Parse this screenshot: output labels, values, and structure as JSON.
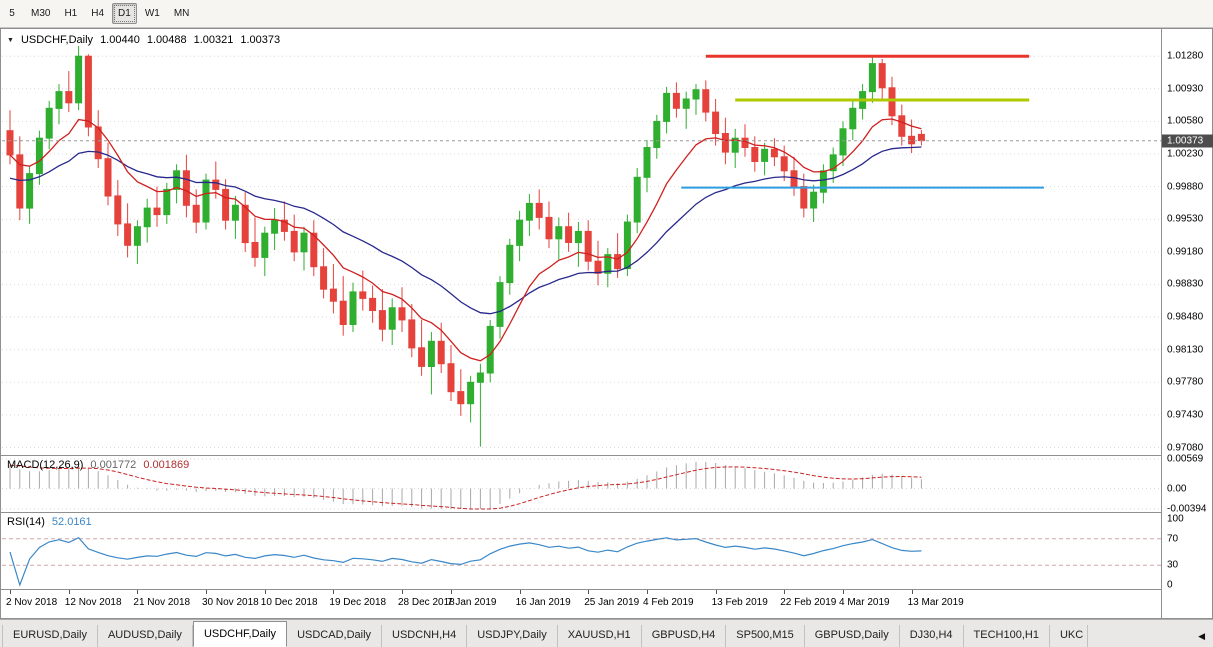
{
  "toolbar": {
    "timeframes": [
      {
        "label": "5",
        "active": false
      },
      {
        "label": "M30",
        "active": false
      },
      {
        "label": "H1",
        "active": false
      },
      {
        "label": "H4",
        "active": false
      },
      {
        "label": "D1",
        "active": true
      },
      {
        "label": "W1",
        "active": false
      },
      {
        "label": "MN",
        "active": false
      }
    ]
  },
  "header": {
    "symbol": "USDCHF,Daily",
    "open": "1.00440",
    "high": "1.00488",
    "low": "1.00321",
    "close": "1.00373"
  },
  "icons": {
    "chart_dropdown": "▼",
    "tab_scroll_left": "◀"
  },
  "colors": {
    "up": "#2fae2f",
    "down": "#e5423c",
    "ma_fast": "#d02020",
    "ma_slow": "#28288c",
    "macd_hist": "#a8a8a8",
    "macd_signal": "#cc2222",
    "rsi": "#3a87c8",
    "grid": "#d9d9d9"
  },
  "price_axis": {
    "labels": [
      "1.01280",
      "1.00930",
      "1.00580",
      "1.00230",
      "0.99880",
      "0.99530",
      "0.99180",
      "0.98830",
      "0.98480",
      "0.98130",
      "0.97780",
      "0.97430",
      "0.97080"
    ],
    "current_price": "1.00373"
  },
  "macd": {
    "name": "MACD(12,26,9)",
    "value_main": "0.001772",
    "value_signal": "0.001869",
    "axis": [
      "0.00569",
      "0.00",
      "-0.00394"
    ]
  },
  "rsi": {
    "name": "RSI(14)",
    "value": "52.0161",
    "axis": [
      "100",
      "70",
      "30",
      "0"
    ]
  },
  "tabbar": {
    "active": "USDCHF,Daily",
    "tabs": [
      {
        "label": "EURUSD,Daily"
      },
      {
        "label": "AUDUSD,Daily"
      },
      {
        "label": "USDCHF,Daily"
      },
      {
        "label": "USDCAD,Daily"
      },
      {
        "label": "USDCNH,H4"
      },
      {
        "label": "USDJPY,Daily"
      },
      {
        "label": "XAUUSD,H1"
      },
      {
        "label": "GBPUSD,H4"
      },
      {
        "label": "SP500,M15"
      },
      {
        "label": "GBPUSD,Daily"
      },
      {
        "label": "DJ30,H4"
      },
      {
        "label": "TECH100,H1"
      },
      {
        "label": "UKC",
        "truncated": true
      }
    ]
  },
  "chart_data": {
    "type": "candlestick",
    "symbol": "USDCHF",
    "timeframe": "Daily",
    "last": {
      "open": 1.0044,
      "high": 1.00488,
      "low": 1.00321,
      "close": 1.00373
    },
    "ylim": [
      0.97,
      1.0155
    ],
    "candles": [
      [
        1.0048,
        1.007,
        1.0012,
        1.0022
      ],
      [
        1.0022,
        1.0042,
        0.9952,
        0.9965
      ],
      [
        0.9965,
        1.001,
        0.9948,
        1.0002
      ],
      [
        1.0002,
        1.0048,
        0.999,
        1.004
      ],
      [
        1.004,
        1.008,
        1.0028,
        1.0072
      ],
      [
        1.0072,
        1.0098,
        1.0055,
        1.009
      ],
      [
        1.009,
        1.0112,
        1.0068,
        1.0078
      ],
      [
        1.0078,
        1.0139,
        1.007,
        1.0128
      ],
      [
        1.0128,
        1.013,
        1.0042,
        1.0052
      ],
      [
        1.0052,
        1.007,
        1.0008,
        1.0018
      ],
      [
        1.0018,
        1.0035,
        0.9968,
        0.9978
      ],
      [
        0.9978,
        0.9995,
        0.9935,
        0.9948
      ],
      [
        0.9948,
        0.997,
        0.9912,
        0.9925
      ],
      [
        0.9925,
        0.9952,
        0.9905,
        0.9945
      ],
      [
        0.9945,
        0.9975,
        0.9928,
        0.9965
      ],
      [
        0.9965,
        0.9988,
        0.9945,
        0.9958
      ],
      [
        0.9958,
        0.9992,
        0.9948,
        0.9985
      ],
      [
        0.9985,
        1.0012,
        0.997,
        1.0005
      ],
      [
        1.0005,
        1.0022,
        0.9955,
        0.9968
      ],
      [
        0.9968,
        0.9985,
        0.9938,
        0.995
      ],
      [
        0.995,
        1.0002,
        0.9942,
        0.9995
      ],
      [
        0.9995,
        1.0015,
        0.9975,
        0.9985
      ],
      [
        0.9985,
        0.9996,
        0.9942,
        0.9952
      ],
      [
        0.9952,
        0.9978,
        0.9932,
        0.9968
      ],
      [
        0.9968,
        0.9982,
        0.9918,
        0.9928
      ],
      [
        0.9928,
        0.9955,
        0.9902,
        0.9912
      ],
      [
        0.9912,
        0.9945,
        0.9892,
        0.9938
      ],
      [
        0.9938,
        0.9965,
        0.992,
        0.9952
      ],
      [
        0.9952,
        0.9972,
        0.993,
        0.994
      ],
      [
        0.994,
        0.9958,
        0.9908,
        0.9918
      ],
      [
        0.9918,
        0.9945,
        0.9898,
        0.9938
      ],
      [
        0.9938,
        0.9952,
        0.9892,
        0.9902
      ],
      [
        0.9902,
        0.9922,
        0.9868,
        0.9878
      ],
      [
        0.9878,
        0.9905,
        0.9852,
        0.9865
      ],
      [
        0.9865,
        0.9892,
        0.9828,
        0.984
      ],
      [
        0.984,
        0.9885,
        0.9832,
        0.9875
      ],
      [
        0.9875,
        0.9898,
        0.9855,
        0.9868
      ],
      [
        0.9868,
        0.9882,
        0.9842,
        0.9855
      ],
      [
        0.9855,
        0.9878,
        0.9822,
        0.9835
      ],
      [
        0.9835,
        0.9868,
        0.9818,
        0.9858
      ],
      [
        0.9858,
        0.988,
        0.9832,
        0.9845
      ],
      [
        0.9845,
        0.9862,
        0.9805,
        0.9815
      ],
      [
        0.9815,
        0.9845,
        0.9785,
        0.9795
      ],
      [
        0.9795,
        0.9832,
        0.9765,
        0.9822
      ],
      [
        0.9822,
        0.9842,
        0.9788,
        0.9798
      ],
      [
        0.9798,
        0.9818,
        0.9758,
        0.9768
      ],
      [
        0.9768,
        0.9792,
        0.9742,
        0.9755
      ],
      [
        0.9755,
        0.9785,
        0.9735,
        0.9778
      ],
      [
        0.9778,
        0.9798,
        0.9709,
        0.9788
      ],
      [
        0.9788,
        0.9845,
        0.9778,
        0.9838
      ],
      [
        0.9838,
        0.9892,
        0.9825,
        0.9885
      ],
      [
        0.9885,
        0.9932,
        0.9872,
        0.9925
      ],
      [
        0.9925,
        0.9962,
        0.9908,
        0.9952
      ],
      [
        0.9952,
        0.998,
        0.9935,
        0.997
      ],
      [
        0.997,
        0.9985,
        0.9942,
        0.9955
      ],
      [
        0.9955,
        0.9972,
        0.9922,
        0.9932
      ],
      [
        0.9932,
        0.9955,
        0.991,
        0.9945
      ],
      [
        0.9945,
        0.996,
        0.9918,
        0.9928
      ],
      [
        0.9928,
        0.995,
        0.9902,
        0.994
      ],
      [
        0.994,
        0.9952,
        0.9898,
        0.9908
      ],
      [
        0.9908,
        0.993,
        0.9882,
        0.9895
      ],
      [
        0.9895,
        0.9922,
        0.988,
        0.9915
      ],
      [
        0.9915,
        0.9938,
        0.989,
        0.99
      ],
      [
        0.99,
        0.9958,
        0.9892,
        0.995
      ],
      [
        0.995,
        1.0008,
        0.9938,
        0.9998
      ],
      [
        0.9998,
        1.0038,
        0.9982,
        1.003
      ],
      [
        1.003,
        1.0065,
        1.0018,
        1.0058
      ],
      [
        1.0058,
        1.0095,
        1.0045,
        1.0088
      ],
      [
        1.0088,
        1.01,
        1.0062,
        1.0072
      ],
      [
        1.0072,
        1.009,
        1.005,
        1.0082
      ],
      [
        1.0082,
        1.0098,
        1.0065,
        1.0092
      ],
      [
        1.0092,
        1.0102,
        1.0058,
        1.0068
      ],
      [
        1.0068,
        1.0082,
        1.0032,
        1.0045
      ],
      [
        1.0045,
        1.0062,
        1.0012,
        1.0025
      ],
      [
        1.0025,
        1.005,
        1.0008,
        1.004
      ],
      [
        1.004,
        1.0055,
        1.002,
        1.003
      ],
      [
        1.003,
        1.0042,
        1.0004,
        1.0015
      ],
      [
        1.0015,
        1.0035,
        1.0,
        1.0028
      ],
      [
        1.0028,
        1.004,
        1.001,
        1.002
      ],
      [
        1.002,
        1.0032,
        0.9994,
        1.0005
      ],
      [
        1.0005,
        1.002,
        0.9978,
        0.9988
      ],
      [
        0.9988,
        1.0002,
        0.9955,
        0.9965
      ],
      [
        0.9965,
        0.999,
        0.995,
        0.9982
      ],
      [
        0.9982,
        1.0012,
        0.997,
        1.0005
      ],
      [
        1.0005,
        1.003,
        0.9992,
        1.0022
      ],
      [
        1.0022,
        1.0058,
        1.001,
        1.005
      ],
      [
        1.005,
        1.008,
        1.0038,
        1.0072
      ],
      [
        1.0072,
        1.0098,
        1.006,
        1.009
      ],
      [
        1.009,
        1.0128,
        1.0078,
        1.012
      ],
      [
        1.012,
        1.0125,
        1.0082,
        1.0094
      ],
      [
        1.0094,
        1.0106,
        1.0054,
        1.0064
      ],
      [
        1.0064,
        1.0076,
        1.0032,
        1.0042
      ],
      [
        1.0042,
        1.006,
        1.0024,
        1.0034
      ],
      [
        1.0044,
        1.00488,
        1.00321,
        1.00373
      ]
    ],
    "x_ticks": [
      {
        "label": "2 Nov 2018",
        "i": 0
      },
      {
        "label": "12 Nov 2018",
        "i": 6
      },
      {
        "label": "21 Nov 2018",
        "i": 13
      },
      {
        "label": "30 Nov 2018",
        "i": 20
      },
      {
        "label": "10 Dec 2018",
        "i": 26
      },
      {
        "label": "19 Dec 2018",
        "i": 33
      },
      {
        "label": "28 Dec 2018",
        "i": 40
      },
      {
        "label": "7 Jan 2019",
        "i": 45
      },
      {
        "label": "16 Jan 2019",
        "i": 52
      },
      {
        "label": "25 Jan 2019",
        "i": 59
      },
      {
        "label": "4 Feb 2019",
        "i": 65
      },
      {
        "label": "13 Feb 2019",
        "i": 72
      },
      {
        "label": "22 Feb 2019",
        "i": 79
      },
      {
        "label": "4 Mar 2019",
        "i": 85
      },
      {
        "label": "13 Mar 2019",
        "i": 92
      }
    ],
    "trend_lines": [
      {
        "name": "resistance-line",
        "price": 1.0128,
        "from": 71,
        "to": 104,
        "color": "#e8352b",
        "width": 3
      },
      {
        "name": "upper-breakout-line",
        "price": 1.0081,
        "from": 74,
        "to": 104,
        "color": "#b0c800",
        "width": 3
      },
      {
        "name": "support-line",
        "price": 0.9987,
        "from": 68.5,
        "to": 105.5,
        "color": "#2e9ee0",
        "width": 2
      }
    ],
    "indicators": {
      "macd": {
        "fast": 12,
        "slow": 26,
        "signal": 9,
        "value_main": 0.001772,
        "value_signal": 0.001869,
        "range": [
          -0.00394,
          0.00569
        ]
      },
      "rsi": {
        "period": 14,
        "value": 52.0161,
        "levels": [
          70,
          30
        ],
        "range": [
          0,
          100
        ]
      }
    }
  }
}
